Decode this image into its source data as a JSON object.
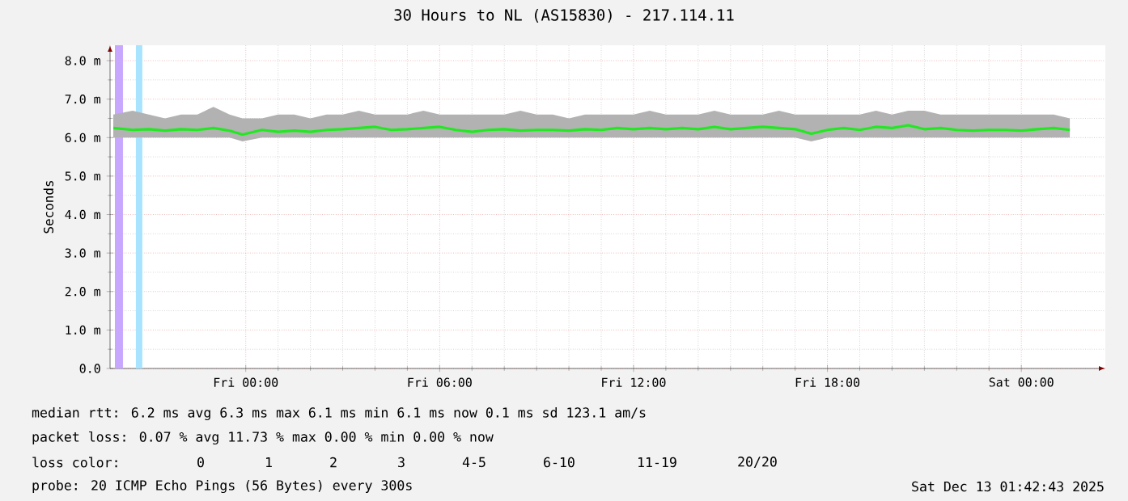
{
  "chart_data": {
    "type": "line",
    "title": "30 Hours to NL (AS15830) - 217.114.11",
    "ylabel": "Seconds",
    "x": [
      "2025-12-11T19:54",
      "2025-12-11T20:30",
      "2025-12-11T21:00",
      "2025-12-11T21:30",
      "2025-12-11T22:00",
      "2025-12-11T22:30",
      "2025-12-11T23:00",
      "2025-12-11T23:30",
      "2025-12-11T23:54",
      "2025-12-12T00:30",
      "2025-12-12T01:00",
      "2025-12-12T01:30",
      "2025-12-12T02:00",
      "2025-12-12T02:30",
      "2025-12-12T03:00",
      "2025-12-12T03:30",
      "2025-12-12T04:00",
      "2025-12-12T04:30",
      "2025-12-12T05:00",
      "2025-12-12T05:30",
      "2025-12-12T06:00",
      "2025-12-12T06:30",
      "2025-12-12T07:00",
      "2025-12-12T07:30",
      "2025-12-12T08:00",
      "2025-12-12T08:30",
      "2025-12-12T09:00",
      "2025-12-12T09:30",
      "2025-12-12T10:00",
      "2025-12-12T10:30",
      "2025-12-12T11:00",
      "2025-12-12T11:30",
      "2025-12-12T12:00",
      "2025-12-12T12:30",
      "2025-12-12T13:00",
      "2025-12-12T13:30",
      "2025-12-12T14:00",
      "2025-12-12T14:30",
      "2025-12-12T15:00",
      "2025-12-12T15:30",
      "2025-12-12T16:00",
      "2025-12-12T16:30",
      "2025-12-12T17:00",
      "2025-12-12T17:30",
      "2025-12-12T18:00",
      "2025-12-12T18:30",
      "2025-12-12T19:00",
      "2025-12-12T19:30",
      "2025-12-12T20:00",
      "2025-12-12T20:30",
      "2025-12-12T21:00",
      "2025-12-12T21:30",
      "2025-12-12T22:00",
      "2025-12-12T22:30",
      "2025-12-12T23:00",
      "2025-12-12T23:30",
      "2025-12-13T00:00",
      "2025-12-13T00:30",
      "2025-12-13T01:00",
      "2025-12-13T01:30"
    ],
    "series": [
      {
        "color": "#22e822",
        "line_style": "solid",
        "values": [
          6.25,
          6.2,
          6.22,
          6.18,
          6.22,
          6.2,
          6.25,
          6.18,
          6.08,
          6.2,
          6.15,
          6.18,
          6.15,
          6.2,
          6.22,
          6.25,
          6.28,
          6.2,
          6.22,
          6.25,
          6.28,
          6.2,
          6.15,
          6.2,
          6.22,
          6.18,
          6.2,
          6.2,
          6.18,
          6.22,
          6.2,
          6.25,
          6.22,
          6.25,
          6.22,
          6.25,
          6.22,
          6.28,
          6.22,
          6.25,
          6.28,
          6.25,
          6.22,
          6.1,
          6.2,
          6.25,
          6.2,
          6.28,
          6.25,
          6.32,
          6.22,
          6.25,
          6.2,
          6.18,
          6.2,
          6.2,
          6.18,
          6.22,
          6.25,
          6.2
        ],
        "lower": [
          6.0,
          6.0,
          6.0,
          6.0,
          6.0,
          6.0,
          6.0,
          6.0,
          5.9,
          6.0,
          6.0,
          6.0,
          6.0,
          6.0,
          6.0,
          6.0,
          6.0,
          6.0,
          6.0,
          6.0,
          6.0,
          6.0,
          6.0,
          6.0,
          6.0,
          6.0,
          6.0,
          6.0,
          6.0,
          6.0,
          6.0,
          6.0,
          6.0,
          6.0,
          6.0,
          6.0,
          6.0,
          6.0,
          6.0,
          6.0,
          6.0,
          6.0,
          6.0,
          5.9,
          6.0,
          6.0,
          6.0,
          6.0,
          6.0,
          6.0,
          6.0,
          6.0,
          6.0,
          6.0,
          6.0,
          6.0,
          6.0,
          6.0,
          6.0,
          6.0
        ],
        "upper": [
          6.6,
          6.7,
          6.6,
          6.5,
          6.6,
          6.6,
          6.8,
          6.6,
          6.5,
          6.5,
          6.6,
          6.6,
          6.5,
          6.6,
          6.6,
          6.7,
          6.6,
          6.6,
          6.6,
          6.7,
          6.6,
          6.6,
          6.6,
          6.6,
          6.6,
          6.7,
          6.6,
          6.6,
          6.5,
          6.6,
          6.6,
          6.6,
          6.6,
          6.7,
          6.6,
          6.6,
          6.6,
          6.7,
          6.6,
          6.6,
          6.6,
          6.7,
          6.6,
          6.6,
          6.6,
          6.6,
          6.6,
          6.7,
          6.6,
          6.7,
          6.7,
          6.6,
          6.6,
          6.6,
          6.6,
          6.6,
          6.6,
          6.6,
          6.6,
          6.5
        ]
      }
    ],
    "xlim": [
      "2025-12-11T19:48",
      "2025-12-13T02:36"
    ],
    "ylim": [
      0,
      8.4
    ],
    "xticks": [
      {
        "value": "2025-12-12T00:00",
        "label": "Fri 00:00"
      },
      {
        "value": "2025-12-12T06:00",
        "label": "Fri 06:00"
      },
      {
        "value": "2025-12-12T12:00",
        "label": "Fri 12:00"
      },
      {
        "value": "2025-12-12T18:00",
        "label": "Fri 18:00"
      },
      {
        "value": "2025-12-13T00:00",
        "label": "Sat 00:00"
      }
    ],
    "yticks": [
      {
        "value": 0,
        "label": "0.0"
      },
      {
        "value": 1,
        "label": "1.0 m"
      },
      {
        "value": 2,
        "label": "2.0 m"
      },
      {
        "value": 3,
        "label": "3.0 m"
      },
      {
        "value": 4,
        "label": "4.0 m"
      },
      {
        "value": 5,
        "label": "5.0 m"
      },
      {
        "value": 6,
        "label": "6.0 m"
      },
      {
        "value": 7,
        "label": "7.0 m"
      },
      {
        "value": 8,
        "label": "8.0 m"
      }
    ],
    "grid": true,
    "bands": [
      {
        "axis": "x",
        "from": "2025-12-11T19:57",
        "to": "2025-12-11T20:12",
        "color": "#c8a8ff"
      },
      {
        "axis": "x",
        "from": "2025-12-11T20:36",
        "to": "2025-12-11T20:48",
        "color": "#a8e4ff"
      }
    ],
    "annotations": [
      "median rtt:  6.2 ms avg  6.3 ms max  6.1 ms min  6.1 ms now  0.1 ms sd  123.1   am/s",
      "packet loss: 0.07 % avg  11.73 % max  0.00 % min  0.00 % now",
      "loss color:",
      "0",
      "1",
      "2",
      "3",
      "4-5",
      "6-10",
      "11-19",
      "20/20",
      "probe:  20 ICMP Echo Pings (56 Bytes) every 300s",
      "Sat Dec 13 01:42:43 2025"
    ]
  }
}
